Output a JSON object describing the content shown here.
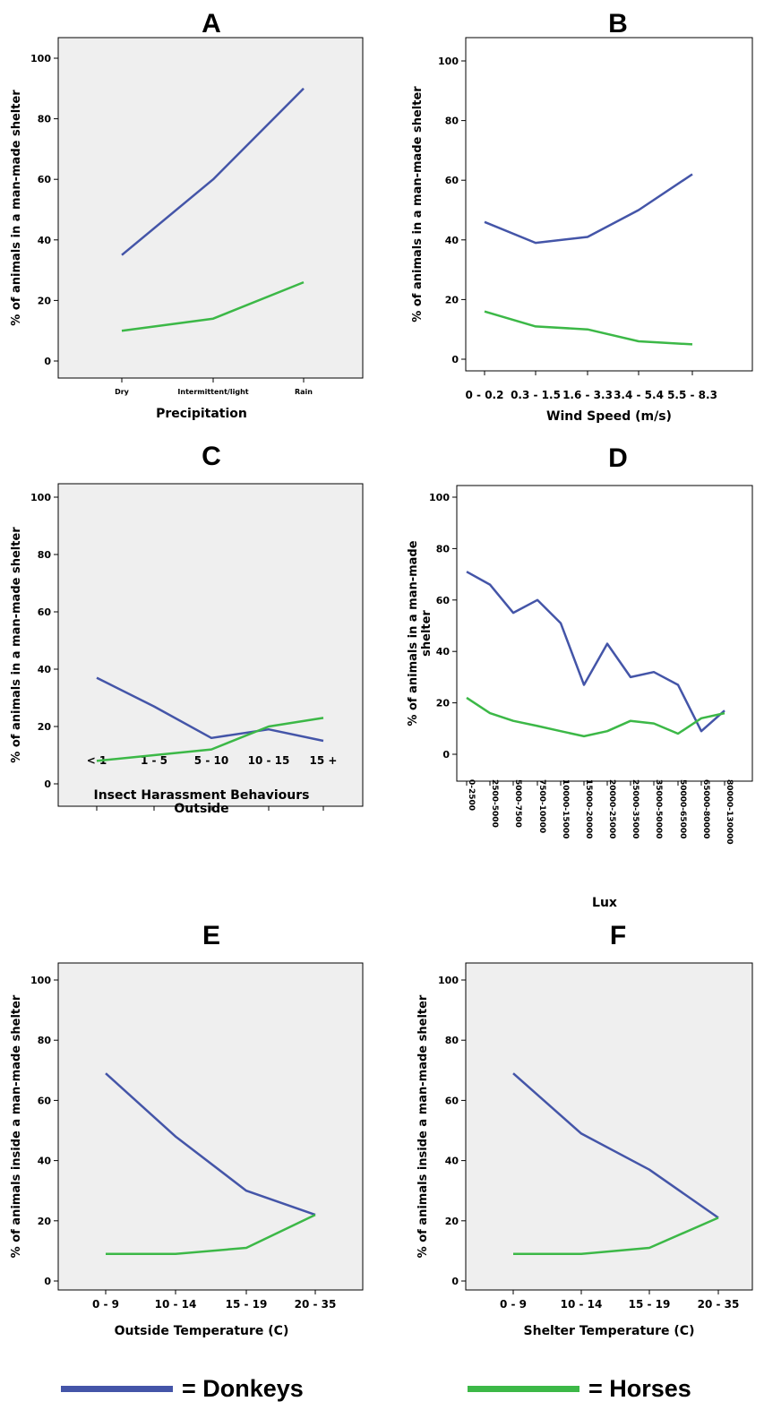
{
  "colors": {
    "donkeys": "#4455a8",
    "horses": "#3cb847"
  },
  "legend": [
    {
      "label": "= Donkeys",
      "color": "#4455a8"
    },
    {
      "label": "= Horses",
      "color": "#3cb847"
    }
  ],
  "chart_data": [
    {
      "type": "line",
      "title": "A",
      "xlabel": "Precipitation",
      "ylabel": "% of animals in a man-made shelter",
      "ylim": [
        0,
        100
      ],
      "yticks": [
        0,
        20,
        40,
        60,
        80,
        100
      ],
      "ytick_labels": [
        "0",
        "20",
        "40",
        "60",
        "80",
        "100"
      ],
      "background": "#efefef",
      "categories": [
        "Dry",
        "Intermittent/light",
        "Rain"
      ],
      "series": [
        {
          "key": "donkeys",
          "values": [
            35,
            60,
            90
          ]
        },
        {
          "key": "horses",
          "values": [
            10,
            14,
            26
          ]
        }
      ]
    },
    {
      "type": "line",
      "title": "B",
      "xlabel": "Wind Speed (m/s)",
      "ylabel": "% of animals in a man-made shelter",
      "ylim": [
        0,
        100
      ],
      "yticks": [
        0,
        20,
        40,
        60,
        80,
        100
      ],
      "ytick_labels": [
        "0",
        "20",
        "40",
        "60",
        "80",
        "100"
      ],
      "background": "#ffffff",
      "categories": [
        "0 - 0.2",
        "0.3 - 1.5",
        "1.6 - 3.3",
        "3.4 - 5.4",
        "5.5 - 8.3"
      ],
      "series": [
        {
          "key": "donkeys",
          "values": [
            46,
            39,
            41,
            50,
            62
          ]
        },
        {
          "key": "horses",
          "values": [
            16,
            11,
            10,
            6,
            5
          ]
        }
      ]
    },
    {
      "type": "line",
      "title": "C",
      "xlabel": "Insect Harassment Behaviours\nOutside",
      "ylabel": "% of animals in a man-made shelter",
      "ylim": [
        0,
        100
      ],
      "yticks": [
        0,
        20,
        40,
        60,
        80,
        100
      ],
      "ytick_labels": [
        "0",
        "20",
        "40",
        "60",
        "80",
        "100"
      ],
      "background": "#efefef",
      "categories": [
        "< 1",
        "1 - 5",
        "5 - 10",
        "10 - 15",
        "15 +"
      ],
      "series": [
        {
          "key": "donkeys",
          "values": [
            37,
            27,
            16,
            19,
            15
          ]
        },
        {
          "key": "horses",
          "values": [
            8,
            10,
            12,
            20,
            23
          ]
        }
      ]
    },
    {
      "type": "line",
      "title": "D",
      "xlabel": "Lux",
      "ylabel": "% of animals in a man-made\nshelter",
      "ylim": [
        0,
        100
      ],
      "yticks": [
        0,
        20,
        40,
        60,
        80,
        100
      ],
      "ytick_labels": [
        "0",
        "20",
        "40",
        "60",
        "80",
        "100"
      ],
      "background": "#ffffff",
      "rotate_xticks": true,
      "categories": [
        "0-2500",
        "2500-5000",
        "5000-7500",
        "7500-10000",
        "10000-15000",
        "15000-20000",
        "20000-25000",
        "25000-35000",
        "35000-50000",
        "50000-65000",
        "65000-80000",
        "80000-130000"
      ],
      "series": [
        {
          "key": "donkeys",
          "values": [
            71,
            66,
            55,
            60,
            51,
            27,
            43,
            30,
            32,
            27,
            9,
            17
          ]
        },
        {
          "key": "horses",
          "values": [
            22,
            16,
            13,
            11,
            9,
            7,
            9,
            13,
            12,
            8,
            14,
            16
          ]
        }
      ]
    },
    {
      "type": "line",
      "title": "E",
      "xlabel": "Outside Temperature (C)",
      "ylabel": "% of animals inside a man-made shelter",
      "ylim": [
        0,
        100
      ],
      "yticks": [
        0,
        20,
        40,
        60,
        80,
        100
      ],
      "ytick_labels": [
        "0",
        "20",
        "40",
        "60",
        "80",
        "100"
      ],
      "background": "#efefef",
      "categories": [
        "0 - 9",
        "10 - 14",
        "15 - 19",
        "20 - 35"
      ],
      "series": [
        {
          "key": "donkeys",
          "values": [
            69,
            48,
            30,
            22
          ]
        },
        {
          "key": "horses",
          "values": [
            9,
            9,
            11,
            22
          ]
        }
      ]
    },
    {
      "type": "line",
      "title": "F",
      "xlabel": "Shelter Temperature (C)",
      "ylabel": "% of animals inside a man-made shelter",
      "ylim": [
        0,
        100
      ],
      "yticks": [
        0,
        20,
        40,
        60,
        80,
        100
      ],
      "ytick_labels": [
        "0",
        "20",
        "40",
        "60",
        "80",
        "100"
      ],
      "background": "#efefef",
      "categories": [
        "0 - 9",
        "10 - 14",
        "15 - 19",
        "20 - 35"
      ],
      "series": [
        {
          "key": "donkeys",
          "values": [
            69,
            49,
            37,
            21
          ]
        },
        {
          "key": "horses",
          "values": [
            9,
            9,
            11,
            21
          ]
        }
      ]
    }
  ]
}
